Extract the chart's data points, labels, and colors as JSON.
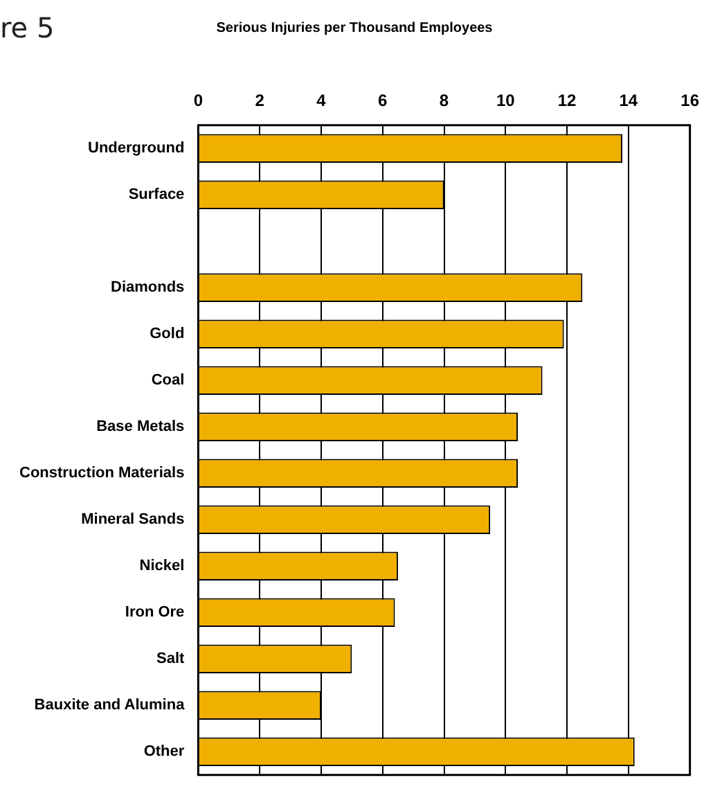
{
  "chart_data": {
    "type": "bar",
    "orientation": "horizontal",
    "title": "Serious Injuries per Thousand Employees",
    "annotations": [
      "re 5"
    ],
    "categories": [
      "Underground",
      "Surface",
      null,
      "Diamonds",
      "Gold",
      "Coal",
      "Base Metals",
      "Construction Materials",
      "Mineral Sands",
      "Nickel",
      "Iron Ore",
      "Salt",
      "Bauxite and Alumina",
      "Other"
    ],
    "values": [
      13.8,
      8.0,
      null,
      12.5,
      11.9,
      11.2,
      10.4,
      10.4,
      9.5,
      6.5,
      6.4,
      5.0,
      4.0,
      14.2
    ],
    "color": "#f0b000",
    "xlim": [
      0,
      16
    ],
    "xticks": [
      0,
      2,
      4,
      6,
      8,
      10,
      12,
      14,
      16
    ],
    "grid": "x",
    "legend": false
  }
}
